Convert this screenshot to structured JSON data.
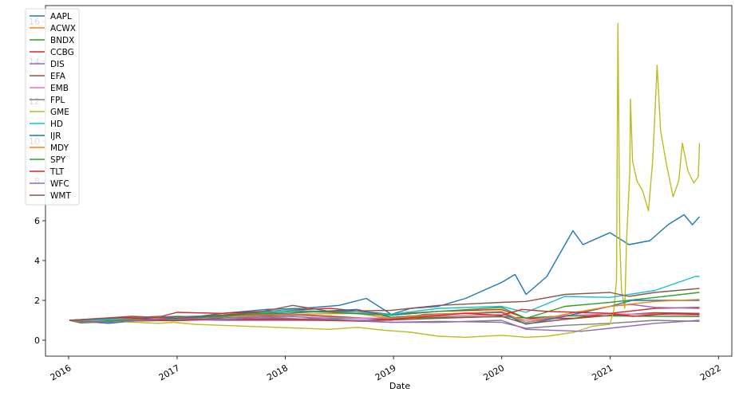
{
  "chart_data": {
    "type": "line",
    "title": "",
    "xlabel": "Date",
    "ylabel": "",
    "xlim": [
      "2015-10-15",
      "2022-02-15"
    ],
    "ylim": [
      -0.8,
      16.8
    ],
    "x_ticks": [
      "2016",
      "2017",
      "2018",
      "2019",
      "2020",
      "2021",
      "2022"
    ],
    "y_ticks": [
      0,
      2,
      4,
      6,
      8,
      10,
      12,
      14,
      16
    ],
    "grid": false,
    "legend_position": "top-left",
    "series": [
      {
        "name": "AAPL",
        "color": "#1f77b4",
        "points": [
          [
            "2016-01-04",
            1.0
          ],
          [
            "2016-05-15",
            0.85
          ],
          [
            "2016-09-01",
            1.0
          ],
          [
            "2017-01-01",
            1.05
          ],
          [
            "2017-06-01",
            1.35
          ],
          [
            "2017-11-01",
            1.55
          ],
          [
            "2018-03-01",
            1.6
          ],
          [
            "2018-07-01",
            1.75
          ],
          [
            "2018-10-01",
            2.1
          ],
          [
            "2018-12-24",
            1.3
          ],
          [
            "2019-03-01",
            1.6
          ],
          [
            "2019-06-01",
            1.7
          ],
          [
            "2019-09-01",
            2.1
          ],
          [
            "2019-12-31",
            2.9
          ],
          [
            "2020-02-15",
            3.3
          ],
          [
            "2020-03-23",
            2.3
          ],
          [
            "2020-06-01",
            3.2
          ],
          [
            "2020-08-28",
            5.5
          ],
          [
            "2020-10-01",
            4.8
          ],
          [
            "2020-12-31",
            5.4
          ],
          [
            "2021-03-05",
            4.8
          ],
          [
            "2021-05-15",
            5.0
          ],
          [
            "2021-07-15",
            5.8
          ],
          [
            "2021-09-07",
            6.3
          ],
          [
            "2021-10-05",
            5.8
          ],
          [
            "2021-10-29",
            6.2
          ]
        ]
      },
      {
        "name": "ACWX",
        "color": "#ff7f0e",
        "points": [
          [
            "2016-01-04",
            1.0
          ],
          [
            "2016-02-11",
            0.88
          ],
          [
            "2016-06-01",
            0.97
          ],
          [
            "2017-01-01",
            1.0
          ],
          [
            "2017-06-01",
            1.12
          ],
          [
            "2018-01-26",
            1.3
          ],
          [
            "2018-06-01",
            1.2
          ],
          [
            "2018-12-24",
            1.05
          ],
          [
            "2019-06-01",
            1.12
          ],
          [
            "2019-12-31",
            1.2
          ],
          [
            "2020-03-23",
            0.82
          ],
          [
            "2020-08-01",
            1.05
          ],
          [
            "2020-12-31",
            1.25
          ],
          [
            "2021-06-01",
            1.35
          ],
          [
            "2021-10-29",
            1.3
          ]
        ]
      },
      {
        "name": "BNDX",
        "color": "#2ca02c",
        "points": [
          [
            "2016-01-04",
            1.0
          ],
          [
            "2016-08-01",
            1.05
          ],
          [
            "2017-06-01",
            1.05
          ],
          [
            "2018-06-01",
            1.08
          ],
          [
            "2019-06-01",
            1.15
          ],
          [
            "2019-12-31",
            1.18
          ],
          [
            "2020-03-23",
            1.12
          ],
          [
            "2020-08-01",
            1.22
          ],
          [
            "2020-12-31",
            1.22
          ],
          [
            "2021-06-01",
            1.2
          ],
          [
            "2021-10-29",
            1.19
          ]
        ]
      },
      {
        "name": "CCBG",
        "color": "#d62728",
        "points": [
          [
            "2016-01-04",
            1.0
          ],
          [
            "2016-11-09",
            1.2
          ],
          [
            "2017-01-01",
            1.4
          ],
          [
            "2017-06-01",
            1.35
          ],
          [
            "2018-01-01",
            1.5
          ],
          [
            "2018-06-01",
            1.6
          ],
          [
            "2018-12-24",
            1.3
          ],
          [
            "2019-06-01",
            1.45
          ],
          [
            "2019-12-31",
            1.55
          ],
          [
            "2020-03-23",
            1.1
          ],
          [
            "2020-09-01",
            1.1
          ],
          [
            "2020-12-31",
            1.35
          ],
          [
            "2021-06-01",
            1.6
          ],
          [
            "2021-10-29",
            1.65
          ]
        ]
      },
      {
        "name": "DIS",
        "color": "#9467bd",
        "points": [
          [
            "2016-01-04",
            1.0
          ],
          [
            "2016-06-01",
            0.95
          ],
          [
            "2017-01-01",
            1.05
          ],
          [
            "2017-06-01",
            1.0
          ],
          [
            "2018-01-01",
            1.0
          ],
          [
            "2018-12-24",
            1.0
          ],
          [
            "2019-04-15",
            1.3
          ],
          [
            "2019-12-31",
            1.4
          ],
          [
            "2020-03-23",
            0.9
          ],
          [
            "2020-08-01",
            1.2
          ],
          [
            "2020-12-31",
            1.7
          ],
          [
            "2021-03-10",
            1.8
          ],
          [
            "2021-06-01",
            1.65
          ],
          [
            "2021-10-29",
            1.6
          ]
        ]
      },
      {
        "name": "EFA",
        "color": "#8c564b",
        "points": [
          [
            "2016-01-04",
            1.0
          ],
          [
            "2016-02-11",
            0.87
          ],
          [
            "2016-06-01",
            0.95
          ],
          [
            "2017-01-01",
            1.0
          ],
          [
            "2017-06-01",
            1.12
          ],
          [
            "2018-01-26",
            1.28
          ],
          [
            "2018-06-01",
            1.2
          ],
          [
            "2018-12-24",
            1.02
          ],
          [
            "2019-06-01",
            1.1
          ],
          [
            "2019-12-31",
            1.2
          ],
          [
            "2020-03-23",
            0.83
          ],
          [
            "2020-08-01",
            1.05
          ],
          [
            "2020-12-31",
            1.25
          ],
          [
            "2021-06-01",
            1.38
          ],
          [
            "2021-10-29",
            1.35
          ]
        ]
      },
      {
        "name": "EMB",
        "color": "#e377c2",
        "points": [
          [
            "2016-01-04",
            1.0
          ],
          [
            "2016-08-01",
            1.1
          ],
          [
            "2017-06-01",
            1.15
          ],
          [
            "2018-01-01",
            1.18
          ],
          [
            "2018-10-01",
            1.1
          ],
          [
            "2019-06-01",
            1.2
          ],
          [
            "2019-12-31",
            1.28
          ],
          [
            "2020-03-23",
            1.0
          ],
          [
            "2020-08-01",
            1.25
          ],
          [
            "2020-12-31",
            1.32
          ],
          [
            "2021-06-01",
            1.3
          ],
          [
            "2021-10-29",
            1.25
          ]
        ]
      },
      {
        "name": "FPL",
        "color": "#7f7f7f",
        "points": [
          [
            "2016-01-04",
            1.0
          ],
          [
            "2016-06-01",
            1.1
          ],
          [
            "2017-01-01",
            1.2
          ],
          [
            "2017-06-01",
            1.15
          ],
          [
            "2018-01-01",
            1.1
          ],
          [
            "2018-12-24",
            0.9
          ],
          [
            "2019-06-01",
            0.95
          ],
          [
            "2019-12-31",
            0.9
          ],
          [
            "2020-03-23",
            0.6
          ],
          [
            "2020-08-01",
            0.75
          ],
          [
            "2020-12-31",
            0.85
          ],
          [
            "2021-06-01",
            1.0
          ],
          [
            "2021-10-29",
            0.95
          ]
        ]
      },
      {
        "name": "GME",
        "color": "#bcbd22",
        "points": [
          [
            "2016-01-04",
            1.0
          ],
          [
            "2016-06-01",
            0.95
          ],
          [
            "2016-11-01",
            0.85
          ],
          [
            "2016-12-20",
            0.9
          ],
          [
            "2017-03-01",
            0.8
          ],
          [
            "2017-06-01",
            0.75
          ],
          [
            "2017-12-01",
            0.65
          ],
          [
            "2018-03-01",
            0.6
          ],
          [
            "2018-06-01",
            0.55
          ],
          [
            "2018-09-01",
            0.65
          ],
          [
            "2018-12-01",
            0.5
          ],
          [
            "2019-03-01",
            0.4
          ],
          [
            "2019-06-01",
            0.2
          ],
          [
            "2019-09-01",
            0.15
          ],
          [
            "2019-12-31",
            0.25
          ],
          [
            "2020-03-23",
            0.15
          ],
          [
            "2020-06-01",
            0.2
          ],
          [
            "2020-09-01",
            0.4
          ],
          [
            "2020-11-01",
            0.7
          ],
          [
            "2020-12-31",
            0.8
          ],
          [
            "2021-01-13",
            1.5
          ],
          [
            "2021-01-22",
            3.0
          ],
          [
            "2021-01-27",
            15.9
          ],
          [
            "2021-02-02",
            5.0
          ],
          [
            "2021-02-08",
            2.5
          ],
          [
            "2021-02-19",
            1.6
          ],
          [
            "2021-02-25",
            5.0
          ],
          [
            "2021-03-08",
            8.5
          ],
          [
            "2021-03-10",
            12.1
          ],
          [
            "2021-03-17",
            9.0
          ],
          [
            "2021-04-01",
            8.0
          ],
          [
            "2021-04-20",
            7.5
          ],
          [
            "2021-05-10",
            6.5
          ],
          [
            "2021-05-24",
            9.0
          ],
          [
            "2021-06-01",
            11.5
          ],
          [
            "2021-06-08",
            13.8
          ],
          [
            "2021-06-20",
            10.5
          ],
          [
            "2021-07-10",
            8.8
          ],
          [
            "2021-08-01",
            7.2
          ],
          [
            "2021-08-20",
            8.0
          ],
          [
            "2021-09-01",
            9.9
          ],
          [
            "2021-09-20",
            8.5
          ],
          [
            "2021-10-10",
            7.9
          ],
          [
            "2021-10-25",
            8.2
          ],
          [
            "2021-10-29",
            9.9
          ]
        ]
      },
      {
        "name": "HD",
        "color": "#17becf",
        "points": [
          [
            "2016-01-04",
            1.0
          ],
          [
            "2016-06-01",
            1.05
          ],
          [
            "2017-01-01",
            1.05
          ],
          [
            "2017-06-01",
            1.2
          ],
          [
            "2018-01-01",
            1.5
          ],
          [
            "2018-06-01",
            1.45
          ],
          [
            "2018-12-24",
            1.3
          ],
          [
            "2019-06-01",
            1.6
          ],
          [
            "2019-12-31",
            1.7
          ],
          [
            "2020-03-23",
            1.4
          ],
          [
            "2020-08-01",
            2.2
          ],
          [
            "2020-12-31",
            2.15
          ],
          [
            "2021-06-01",
            2.5
          ],
          [
            "2021-10-15",
            3.2
          ],
          [
            "2021-10-29",
            3.2
          ]
        ]
      },
      {
        "name": "IJR",
        "color": "#1f77b4",
        "points": [
          [
            "2016-01-04",
            1.0
          ],
          [
            "2016-02-11",
            0.88
          ],
          [
            "2016-11-09",
            1.15
          ],
          [
            "2017-06-01",
            1.25
          ],
          [
            "2018-01-01",
            1.35
          ],
          [
            "2018-08-31",
            1.55
          ],
          [
            "2018-12-24",
            1.15
          ],
          [
            "2019-06-01",
            1.3
          ],
          [
            "2019-12-31",
            1.4
          ],
          [
            "2020-03-23",
            0.8
          ],
          [
            "2020-08-01",
            1.2
          ],
          [
            "2020-12-31",
            1.7
          ],
          [
            "2021-03-15",
            2.0
          ],
          [
            "2021-10-29",
            2.0
          ]
        ]
      },
      {
        "name": "MDY",
        "color": "#ff7f0e",
        "points": [
          [
            "2016-01-04",
            1.0
          ],
          [
            "2016-02-11",
            0.9
          ],
          [
            "2016-11-09",
            1.1
          ],
          [
            "2017-06-01",
            1.2
          ],
          [
            "2018-01-01",
            1.3
          ],
          [
            "2018-08-31",
            1.35
          ],
          [
            "2018-12-24",
            1.1
          ],
          [
            "2019-06-01",
            1.3
          ],
          [
            "2019-12-31",
            1.45
          ],
          [
            "2020-03-23",
            0.9
          ],
          [
            "2020-08-01",
            1.3
          ],
          [
            "2020-12-31",
            1.7
          ],
          [
            "2021-06-01",
            1.95
          ],
          [
            "2021-10-29",
            2.05
          ]
        ]
      },
      {
        "name": "SPY",
        "color": "#2ca02c",
        "points": [
          [
            "2016-01-04",
            1.0
          ],
          [
            "2016-02-11",
            0.92
          ],
          [
            "2016-11-09",
            1.05
          ],
          [
            "2017-06-01",
            1.2
          ],
          [
            "2018-01-26",
            1.45
          ],
          [
            "2018-06-01",
            1.4
          ],
          [
            "2018-12-24",
            1.25
          ],
          [
            "2019-06-01",
            1.45
          ],
          [
            "2019-12-31",
            1.65
          ],
          [
            "2020-03-23",
            1.1
          ],
          [
            "2020-08-01",
            1.7
          ],
          [
            "2020-12-31",
            1.9
          ],
          [
            "2021-06-01",
            2.15
          ],
          [
            "2021-10-29",
            2.4
          ]
        ]
      },
      {
        "name": "TLT",
        "color": "#d62728",
        "points": [
          [
            "2016-01-04",
            1.0
          ],
          [
            "2016-07-01",
            1.15
          ],
          [
            "2016-12-15",
            0.98
          ],
          [
            "2017-06-01",
            1.05
          ],
          [
            "2018-01-01",
            1.05
          ],
          [
            "2018-10-01",
            0.95
          ],
          [
            "2019-08-28",
            1.35
          ],
          [
            "2019-12-31",
            1.25
          ],
          [
            "2020-03-09",
            1.55
          ],
          [
            "2020-06-01",
            1.45
          ],
          [
            "2020-12-31",
            1.35
          ],
          [
            "2021-03-18",
            1.2
          ],
          [
            "2021-08-01",
            1.35
          ],
          [
            "2021-10-29",
            1.3
          ]
        ]
      },
      {
        "name": "WFC",
        "color": "#9467bd",
        "points": [
          [
            "2016-01-04",
            1.0
          ],
          [
            "2016-06-01",
            0.9
          ],
          [
            "2016-12-15",
            1.1
          ],
          [
            "2017-06-01",
            1.05
          ],
          [
            "2018-01-26",
            1.2
          ],
          [
            "2018-06-01",
            1.05
          ],
          [
            "2018-12-24",
            0.9
          ],
          [
            "2019-06-01",
            0.9
          ],
          [
            "2019-12-31",
            1.0
          ],
          [
            "2020-03-23",
            0.55
          ],
          [
            "2020-09-25",
            0.45
          ],
          [
            "2020-12-31",
            0.6
          ],
          [
            "2021-06-01",
            0.85
          ],
          [
            "2021-10-29",
            1.0
          ]
        ]
      },
      {
        "name": "WMT",
        "color": "#8c564b",
        "points": [
          [
            "2016-01-04",
            1.0
          ],
          [
            "2016-08-01",
            1.2
          ],
          [
            "2017-01-01",
            1.1
          ],
          [
            "2017-10-01",
            1.4
          ],
          [
            "2018-01-26",
            1.75
          ],
          [
            "2018-06-01",
            1.45
          ],
          [
            "2018-12-24",
            1.5
          ],
          [
            "2019-06-01",
            1.75
          ],
          [
            "2019-12-31",
            1.9
          ],
          [
            "2020-03-23",
            1.95
          ],
          [
            "2020-08-01",
            2.3
          ],
          [
            "2020-12-31",
            2.4
          ],
          [
            "2021-03-05",
            2.2
          ],
          [
            "2021-06-01",
            2.4
          ],
          [
            "2021-10-29",
            2.6
          ]
        ]
      }
    ]
  }
}
